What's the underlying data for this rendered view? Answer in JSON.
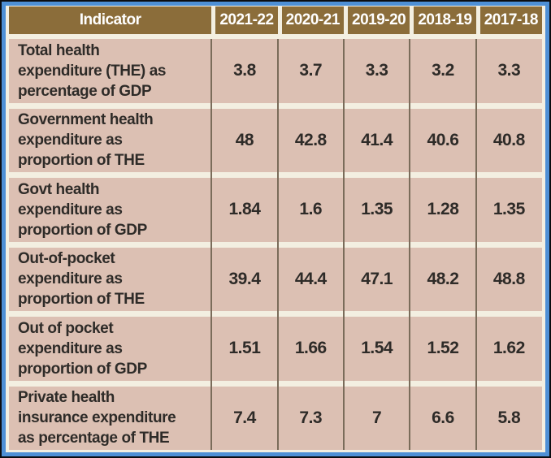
{
  "table": {
    "columns": [
      "Indicator",
      "2021-22",
      "2020-21",
      "2019-20",
      "2018-19",
      "2017-18"
    ],
    "rows": [
      {
        "label": "Total health\nexpenditure (THE) as\npercentage of GDP",
        "values": [
          "3.8",
          "3.7",
          "3.3",
          "3.2",
          "3.3"
        ]
      },
      {
        "label": "Government health\nexpenditure as\nproportion of THE",
        "values": [
          "48",
          "42.8",
          "41.4",
          "40.6",
          "40.8"
        ]
      },
      {
        "label": "Govt health\nexpenditure as\nproportion of GDP",
        "values": [
          "1.84",
          "1.6",
          "1.35",
          "1.28",
          "1.35"
        ]
      },
      {
        "label": "Out-of-pocket\nexpenditure as\nproportion of THE",
        "values": [
          "39.4",
          "44.4",
          "47.1",
          "48.2",
          "48.8"
        ]
      },
      {
        "label": "Out of pocket\nexpenditure as\nproportion of GDP",
        "values": [
          "1.51",
          "1.66",
          "1.54",
          "1.52",
          "1.62"
        ]
      },
      {
        "label": "Private health\ninsurance expenditure\nas percentage of THE",
        "values": [
          "7.4",
          "7.3",
          "7",
          "6.6",
          "5.8"
        ]
      }
    ]
  },
  "chart_data": {
    "type": "table",
    "title": "",
    "columns": [
      "Indicator",
      "2021-22",
      "2020-21",
      "2019-20",
      "2018-19",
      "2017-18"
    ],
    "rows": [
      {
        "indicator": "Total health expenditure (THE) as percentage of GDP",
        "values": [
          3.8,
          3.7,
          3.3,
          3.2,
          3.3
        ]
      },
      {
        "indicator": "Government health expenditure as proportion of THE",
        "values": [
          48,
          42.8,
          41.4,
          40.6,
          40.8
        ]
      },
      {
        "indicator": "Govt health expenditure as proportion of GDP",
        "values": [
          1.84,
          1.6,
          1.35,
          1.28,
          1.35
        ]
      },
      {
        "indicator": "Out-of-pocket expenditure as proportion of THE",
        "values": [
          39.4,
          44.4,
          47.1,
          48.2,
          48.8
        ]
      },
      {
        "indicator": "Out of pocket expenditure as proportion of GDP",
        "values": [
          1.51,
          1.66,
          1.54,
          1.52,
          1.62
        ]
      },
      {
        "indicator": "Private health insurance expenditure as percentage of THE",
        "values": [
          7.4,
          7.3,
          7,
          6.6,
          5.8
        ]
      }
    ]
  },
  "colors": {
    "header_bg": "#8b6d3a",
    "header_text": "#ffffff",
    "cell_bg": "#dcc0b3",
    "cell_text": "#2e2b28",
    "background": "#f3efe1",
    "frame_blue": "#4e90d6",
    "frame_dark": "#0b0d11",
    "divider": "#7a6c5a"
  }
}
